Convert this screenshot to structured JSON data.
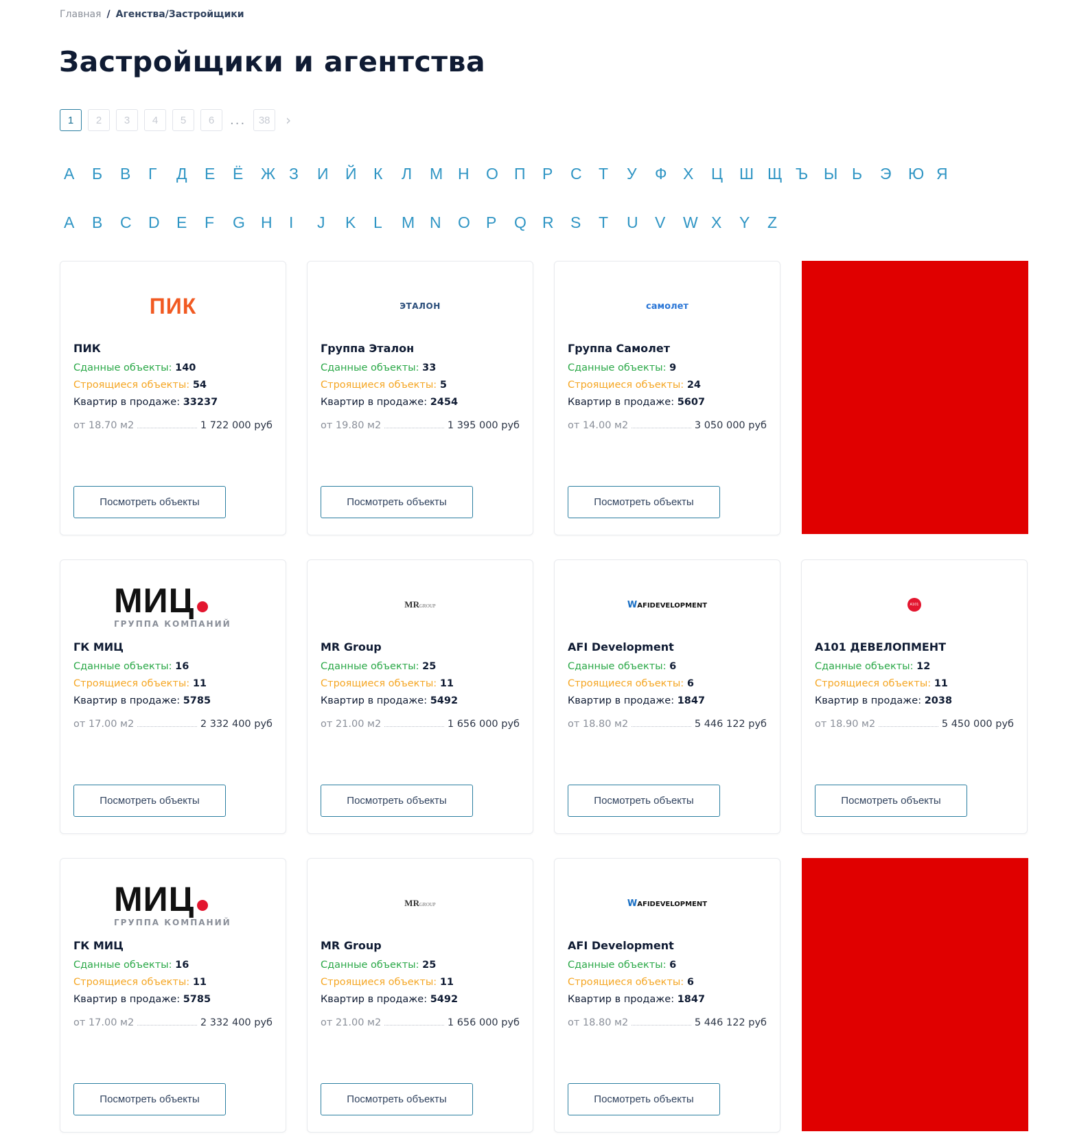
{
  "breadcrumb": {
    "home": "Главная",
    "separator": "/",
    "current": "Агенства/Застройщики"
  },
  "page_title": "Застройщики и агентства",
  "pagination": {
    "pages": [
      "1",
      "2",
      "3",
      "4",
      "5",
      "6"
    ],
    "ellipsis": "...",
    "last": "38",
    "next_icon": "chevron-right-icon",
    "active_page": "1"
  },
  "alphabet_ru": [
    "А",
    "Б",
    "В",
    "Г",
    "Д",
    "Е",
    "Ё",
    "Ж",
    "З",
    "И",
    "Й",
    "К",
    "Л",
    "М",
    "Н",
    "О",
    "П",
    "Р",
    "С",
    "Т",
    "У",
    "Ф",
    "Х",
    "Ц",
    "Ш",
    "Щ",
    "Ъ",
    "Ы",
    "Ь",
    "Э",
    "Ю",
    "Я"
  ],
  "alphabet_en": [
    "A",
    "B",
    "C",
    "D",
    "E",
    "F",
    "G",
    "H",
    "I",
    "J",
    "K",
    "L",
    "M",
    "N",
    "O",
    "P",
    "Q",
    "R",
    "S",
    "T",
    "U",
    "V",
    "W",
    "X",
    "Y",
    "Z"
  ],
  "labels": {
    "done": "Сданные объекты:",
    "building": "Строящиеся объекты:",
    "sale": "Квартир в продаже:",
    "view_button": "Посмотреть объекты"
  },
  "colors": {
    "done": "#2aa847",
    "building": "#f5a623",
    "accent": "#2f95c4",
    "ad": "#e00000"
  },
  "cards": [
    {
      "logo": "ПИК",
      "name": "ПИК",
      "done": "140",
      "building": "54",
      "sale": "33237",
      "area": "от 18.70 м2",
      "price": "1 722 000 руб"
    },
    {
      "logo": "ЭТАЛОН",
      "name": "Группа Эталон",
      "done": "33",
      "building": "5",
      "sale": "2454",
      "area": "от 19.80 м2",
      "price": "1 395 000 руб"
    },
    {
      "logo": "самолет",
      "name": "Группа Самолет",
      "done": "9",
      "building": "24",
      "sale": "5607",
      "area": "от 14.00 м2",
      "price": "3 050 000 руб"
    },
    {
      "logo": "МИЦ",
      "logo_sub": "ГРУППА КОМПАНИЙ",
      "name": "ГК МИЦ",
      "done": "16",
      "building": "11",
      "sale": "5785",
      "area": "от 17.00 м2",
      "price": "2 332 400 руб"
    },
    {
      "logo": "MR",
      "logo_sub": "GROUP",
      "name": "MR Group",
      "done": "25",
      "building": "11",
      "sale": "5492",
      "area": "от 21.00 м2",
      "price": "1 656 000 руб"
    },
    {
      "logo": "W",
      "logo_sub": "AFIDEVELOPMENT",
      "name": "AFI Development",
      "done": "6",
      "building": "6",
      "sale": "1847",
      "area": "от 18.80 м2",
      "price": "5 446 122 руб"
    },
    {
      "logo": "A101",
      "name": "А101 ДЕВЕЛОПМЕНТ",
      "done": "12",
      "building": "11",
      "sale": "2038",
      "area": "от 18.90 м2",
      "price": "5 450 000 руб"
    },
    {
      "logo": "МИЦ",
      "logo_sub": "ГРУППА КОМПАНИЙ",
      "name": "ГК МИЦ",
      "done": "16",
      "building": "11",
      "sale": "5785",
      "area": "от 17.00 м2",
      "price": "2 332 400 руб"
    },
    {
      "logo": "MR",
      "logo_sub": "GROUP",
      "name": "MR Group",
      "done": "25",
      "building": "11",
      "sale": "5492",
      "area": "от 21.00 м2",
      "price": "1 656 000 руб"
    },
    {
      "logo": "W",
      "logo_sub": "AFIDEVELOPMENT",
      "name": "AFI Development",
      "done": "6",
      "building": "6",
      "sale": "1847",
      "area": "от 18.80 м2",
      "price": "5 446 122 руб"
    }
  ]
}
